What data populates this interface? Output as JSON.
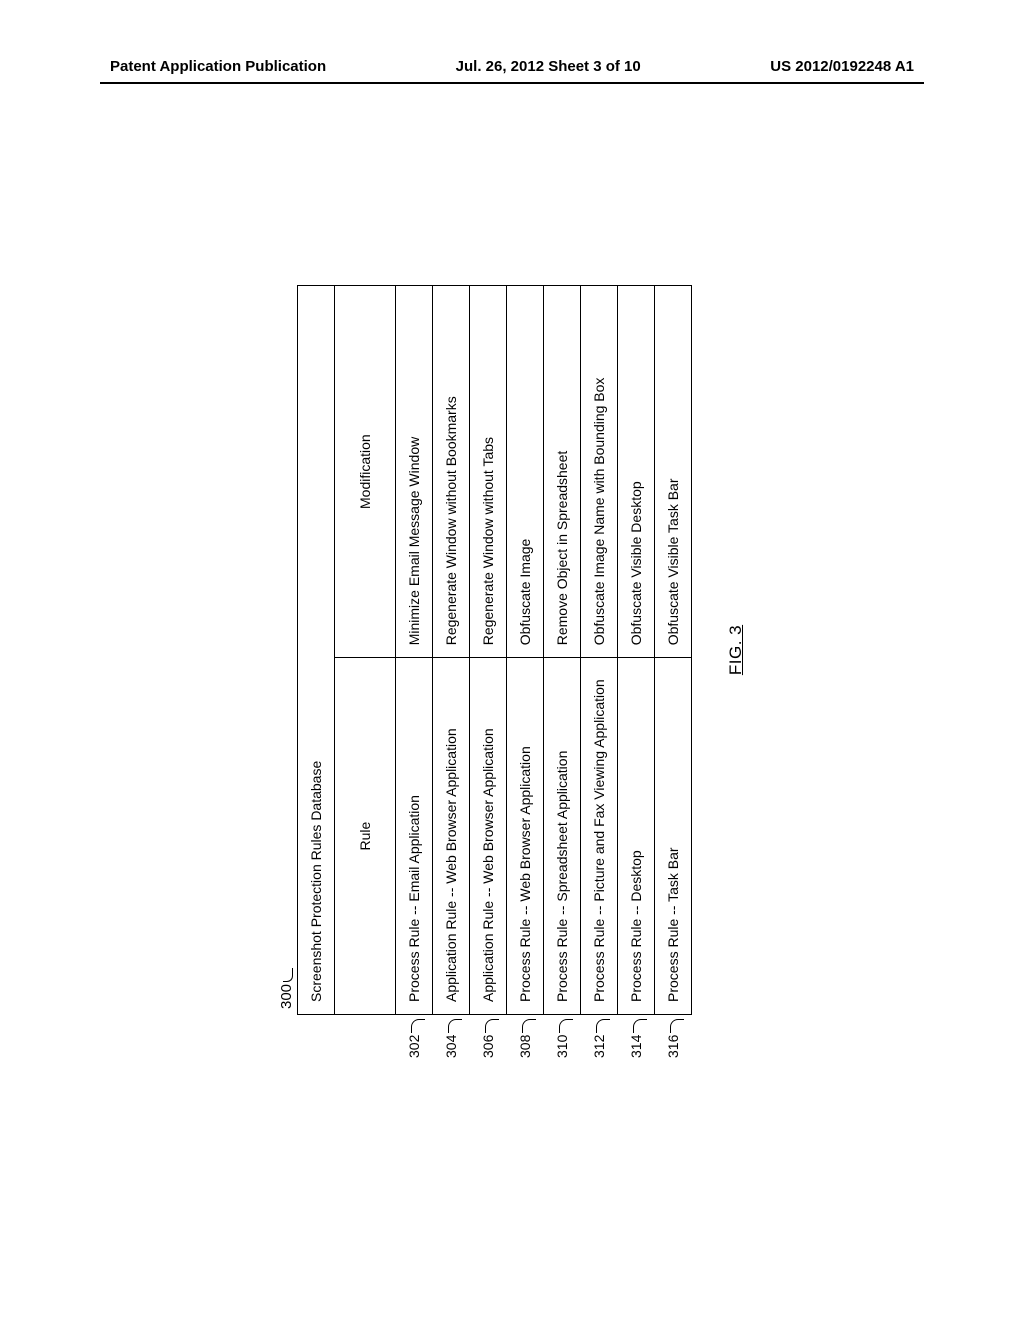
{
  "header": {
    "left": "Patent Application Publication",
    "center": "Jul. 26, 2012  Sheet 3 of 10",
    "right": "US 2012/0192248 A1"
  },
  "figure": {
    "ref_main": "300",
    "title": "Screenshot Protection Rules Database",
    "columns": {
      "rule": "Rule",
      "modification": "Modification"
    },
    "rows": [
      {
        "ref": "302",
        "rule": "Process Rule -- Email Application",
        "modification": "Minimize Email Message Window"
      },
      {
        "ref": "304",
        "rule": "Application Rule -- Web Browser Application",
        "modification": "Regenerate Window without Bookmarks"
      },
      {
        "ref": "306",
        "rule": "Application Rule -- Web Browser Application",
        "modification": "Regenerate Window without Tabs"
      },
      {
        "ref": "308",
        "rule": "Process Rule -- Web Browser Application",
        "modification": "Obfuscate Image"
      },
      {
        "ref": "310",
        "rule": "Process Rule -- Spreadsheet Application",
        "modification": "Remove Object in Spreadsheet"
      },
      {
        "ref": "312",
        "rule": "Process Rule -- Picture and Fax Viewing Application",
        "modification": "Obfuscate Image Name with Bounding Box"
      },
      {
        "ref": "314",
        "rule": "Process Rule -- Desktop",
        "modification": "Obfuscate Visible Desktop"
      },
      {
        "ref": "316",
        "rule": "Process Rule -- Task Bar",
        "modification": "Obfuscate Visible Task Bar"
      }
    ],
    "caption": "FIG. 3"
  }
}
